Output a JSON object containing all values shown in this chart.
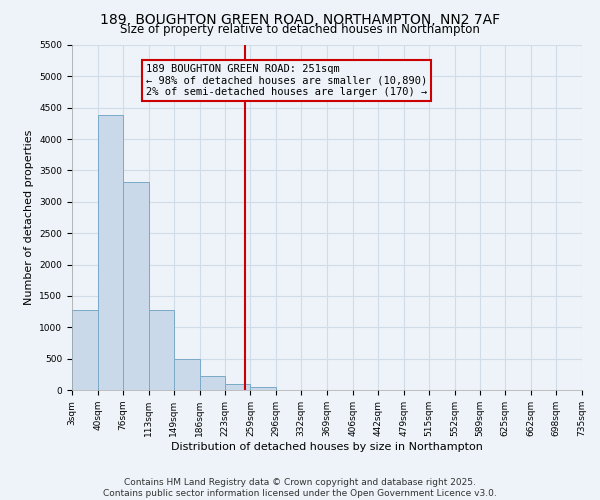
{
  "title": "189, BOUGHTON GREEN ROAD, NORTHAMPTON, NN2 7AF",
  "subtitle": "Size of property relative to detached houses in Northampton",
  "xlabel": "Distribution of detached houses by size in Northampton",
  "ylabel": "Number of detached properties",
  "bin_edges": [
    3,
    40,
    76,
    113,
    149,
    186,
    223,
    259,
    296,
    332,
    369,
    406,
    442,
    479,
    515,
    552,
    589,
    625,
    662,
    698,
    735
  ],
  "bin_heights": [
    1270,
    4380,
    3320,
    1280,
    500,
    230,
    100,
    50,
    0,
    0,
    0,
    0,
    0,
    0,
    0,
    0,
    0,
    0,
    0,
    0
  ],
  "bar_facecolor": "#c9d9ea",
  "bar_edgecolor": "#7aaac8",
  "grid_color": "#d0dce8",
  "background_color": "#edf3f8",
  "vline_x": 251,
  "vline_color": "#cc0000",
  "annotation_line1": "189 BOUGHTON GREEN ROAD: 251sqm",
  "annotation_line2": "← 98% of detached houses are smaller (10,890)",
  "annotation_line3": "2% of semi-detached houses are larger (170) →",
  "annotation_box_edgecolor": "#cc0000",
  "ylim": [
    0,
    5500
  ],
  "yticks": [
    0,
    500,
    1000,
    1500,
    2000,
    2500,
    3000,
    3500,
    4000,
    4500,
    5000,
    5500
  ],
  "footnote1": "Contains HM Land Registry data © Crown copyright and database right 2025.",
  "footnote2": "Contains public sector information licensed under the Open Government Licence v3.0.",
  "title_fontsize": 10,
  "subtitle_fontsize": 8.5,
  "xlabel_fontsize": 8,
  "ylabel_fontsize": 8,
  "tick_fontsize": 6.5,
  "annotation_fontsize": 7.5,
  "footnote_fontsize": 6.5
}
